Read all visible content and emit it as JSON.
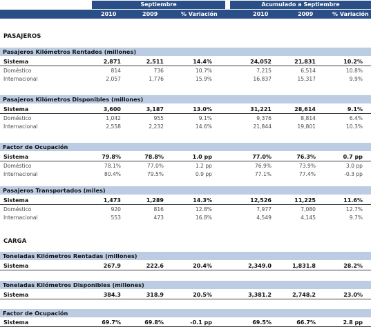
{
  "header": {
    "group_september": "Septiembre",
    "group_accumulated": "Acumulado a Septiembre",
    "columns": [
      "2010",
      "2009",
      "% Variación",
      "2010",
      "2009",
      "% Variación"
    ]
  },
  "pasajeros": {
    "title": "PASAJEROS",
    "sections": [
      {
        "title": "Pasajeros Kilómetros Rentados (millones)",
        "rows": [
          {
            "label": "Sistema",
            "v": [
              "2,871",
              "2,511",
              "14.4%",
              "24,052",
              "21,831",
              "10.2%"
            ]
          },
          {
            "label": "Doméstico",
            "v": [
              "814",
              "736",
              "10.7%",
              "7,215",
              "6,514",
              "10.8%"
            ]
          },
          {
            "label": "Internacional",
            "v": [
              "2,057",
              "1,776",
              "15.9%",
              "16,837",
              "15,317",
              "9.9%"
            ]
          }
        ]
      },
      {
        "title": "Pasajeros Kilómetros Disponibles (millones)",
        "rows": [
          {
            "label": "Sistema",
            "v": [
              "3,600",
              "3,187",
              "13.0%",
              "31,221",
              "28,614",
              "9.1%"
            ]
          },
          {
            "label": "Doméstico",
            "v": [
              "1,042",
              "955",
              "9.1%",
              "9,376",
              "8,814",
              "6.4%"
            ]
          },
          {
            "label": "Internacional",
            "v": [
              "2,558",
              "2,232",
              "14.6%",
              "21,844",
              "19,801",
              "10.3%"
            ]
          }
        ]
      },
      {
        "title": "Factor de Ocupación",
        "rows": [
          {
            "label": "Sistema",
            "v": [
              "79.8%",
              "78.8%",
              "1.0 pp",
              "77.0%",
              "76.3%",
              "0.7 pp"
            ]
          },
          {
            "label": "Doméstico",
            "v": [
              "78.1%",
              "77.0%",
              "1.2 pp",
              "76.9%",
              "73.9%",
              "3.0 pp"
            ]
          },
          {
            "label": "Internacional",
            "v": [
              "80.4%",
              "79.5%",
              "0.9 pp",
              "77.1%",
              "77.4%",
              "-0.3 pp"
            ]
          }
        ]
      },
      {
        "title": "Pasajeros Transportados (miles)",
        "rows": [
          {
            "label": "Sistema",
            "v": [
              "1,473",
              "1,289",
              "14.3%",
              "12,526",
              "11,225",
              "11.6%"
            ]
          },
          {
            "label": "Doméstico",
            "v": [
              "920",
              "816",
              "12.8%",
              "7,977",
              "7,080",
              "12.7%"
            ]
          },
          {
            "label": "Internacional",
            "v": [
              "553",
              "473",
              "16.8%",
              "4,549",
              "4,145",
              "9.7%"
            ]
          }
        ]
      }
    ]
  },
  "carga": {
    "title": "CARGA",
    "sections": [
      {
        "title": "Toneladas Kilómetros Rentadas (millones)",
        "rows": [
          {
            "label": "Sistema",
            "v": [
              "267.9",
              "222.6",
              "20.4%",
              "2,349.0",
              "1,831.8",
              "28.2%"
            ]
          }
        ]
      },
      {
        "title": "Toneladas Kilómetros Disponibles (millones)",
        "rows": [
          {
            "label": "Sistema",
            "v": [
              "384.3",
              "318.9",
              "20.5%",
              "3,381.2",
              "2,748.2",
              "23.0%"
            ]
          }
        ]
      },
      {
        "title": "Factor de Ocupación",
        "rows": [
          {
            "label": "Sistema",
            "v": [
              "69.7%",
              "69.8%",
              "-0.1 pp",
              "69.5%",
              "66.7%",
              "2.8 pp"
            ]
          }
        ]
      }
    ]
  }
}
